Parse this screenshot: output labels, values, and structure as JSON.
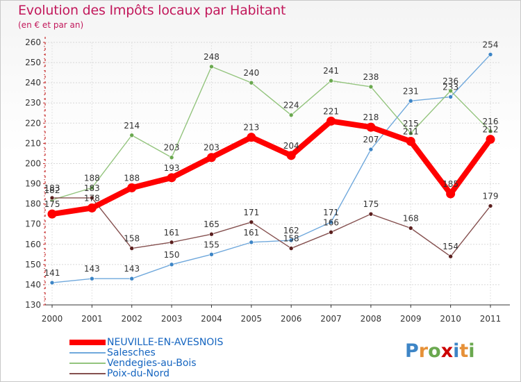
{
  "header": {
    "title": "Evolution des Impôts locaux par Habitant",
    "subtitle": "(en € et par an)"
  },
  "chart_data": {
    "type": "line",
    "title": "Evolution des Impôts locaux par Habitant",
    "subtitle": "(en € et par an)",
    "xlabel": "",
    "ylabel": "",
    "categories": [
      "2000",
      "2001",
      "2002",
      "2003",
      "2004",
      "2005",
      "2006",
      "2007",
      "2008",
      "2009",
      "2010",
      "2011"
    ],
    "ylim": [
      130,
      260
    ],
    "yticks": [
      130,
      140,
      150,
      160,
      170,
      180,
      190,
      200,
      210,
      220,
      230,
      240,
      250,
      260
    ],
    "grid": true,
    "series": [
      {
        "name": "NEUVILLE-EN-AVESNOIS",
        "color": "#ff0000",
        "point_color": "#ff0000",
        "values": [
          175,
          178,
          188,
          193,
          203,
          213,
          204,
          221,
          218,
          211,
          185,
          212
        ],
        "labels": [
          "175",
          "178",
          "188",
          "193",
          "203",
          "213",
          "204",
          "221",
          "218",
          "211",
          "185",
          "212"
        ]
      },
      {
        "name": "Salesches",
        "color": "#6fa8dc",
        "point_color": "#3d85c6",
        "values": [
          141,
          143,
          143,
          150,
          155,
          161,
          162,
          171,
          207,
          231,
          233,
          254
        ],
        "labels": [
          "141",
          "143",
          "143",
          "150",
          "155",
          "161",
          "162",
          "171",
          "207",
          "231",
          "233",
          "254"
        ]
      },
      {
        "name": "Vendegies-au-Bois",
        "color": "#93c47d",
        "point_color": "#6aa84f",
        "values": [
          182,
          188,
          214,
          203,
          248,
          240,
          224,
          241,
          238,
          215,
          236,
          216
        ],
        "labels": [
          "182",
          "188",
          "214",
          "203",
          "248",
          "240",
          "224",
          "241",
          "238",
          "215",
          "236",
          "216"
        ]
      },
      {
        "name": "Poix-du-Nord",
        "color": "#85504f",
        "point_color": "#5b1f1e",
        "values": [
          183,
          183,
          158,
          161,
          165,
          171,
          158,
          166,
          175,
          168,
          154,
          179
        ],
        "labels": [
          "183",
          "183",
          "158",
          "161",
          "165",
          "171",
          "158",
          "166",
          "175",
          "168",
          "154",
          "179"
        ]
      }
    ],
    "legend": "bottom-left"
  },
  "logo": {
    "letters": [
      "P",
      "r",
      "o",
      "x",
      "i",
      "t",
      "i"
    ],
    "colors": [
      "#3d85c6",
      "#e69138",
      "#6aa84f",
      "#cc0000",
      "#3d85c6",
      "#e69138",
      "#6aa84f"
    ]
  }
}
